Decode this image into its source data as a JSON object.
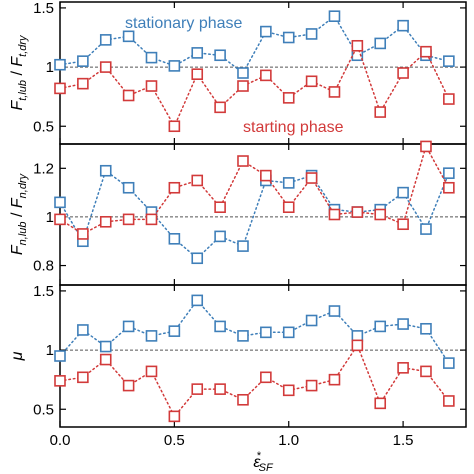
{
  "colors": {
    "stationary": "#3f7fb9",
    "starting": "#d23a3a",
    "reference": "#555555"
  },
  "chart_data": [
    {
      "type": "scatter",
      "ylabel_main": "F",
      "ylabel_sub1": "t,lub",
      "ylabel_mid": " / ",
      "ylabel_main2": "F",
      "ylabel_sub2": "t,dry",
      "ylim": [
        0.35,
        1.55
      ],
      "yticks": [
        0.5,
        1,
        1.5
      ],
      "ytick_labels": [
        "0.5",
        "1",
        "1.5"
      ],
      "reference_y": 1,
      "annotations": [
        {
          "text": "stationary phase",
          "series": "stationary"
        },
        {
          "text": "starting phase",
          "series": "starting"
        }
      ],
      "series": [
        {
          "key": "stationary",
          "x": [
            0,
            0.1,
            0.2,
            0.3,
            0.4,
            0.5,
            0.6,
            0.7,
            0.8,
            0.9,
            1.0,
            1.1,
            1.2,
            1.3,
            1.4,
            1.5,
            1.6,
            1.7
          ],
          "y": [
            1.02,
            1.05,
            1.23,
            1.26,
            1.08,
            1.01,
            1.12,
            1.1,
            0.95,
            1.3,
            1.25,
            1.28,
            1.43,
            1.1,
            1.2,
            1.35,
            1.1,
            1.05
          ]
        },
        {
          "key": "starting",
          "x": [
            0,
            0.1,
            0.2,
            0.3,
            0.4,
            0.5,
            0.6,
            0.7,
            0.8,
            0.9,
            1.0,
            1.1,
            1.2,
            1.3,
            1.4,
            1.5,
            1.6,
            1.7
          ],
          "y": [
            0.82,
            0.86,
            1.0,
            0.76,
            0.84,
            0.5,
            0.94,
            0.66,
            0.84,
            0.93,
            0.74,
            0.88,
            0.79,
            1.18,
            0.62,
            0.95,
            1.13,
            0.73
          ]
        }
      ]
    },
    {
      "type": "scatter",
      "ylabel_main": "F",
      "ylabel_sub1": "n,lub",
      "ylabel_mid": " / ",
      "ylabel_main2": "F",
      "ylabel_sub2": "n,dry",
      "ylim": [
        0.72,
        1.3
      ],
      "yticks": [
        0.8,
        1,
        1.2
      ],
      "ytick_labels": [
        "0.8",
        "1",
        "1.2"
      ],
      "reference_y": 1,
      "series": [
        {
          "key": "stationary",
          "x": [
            0,
            0.1,
            0.2,
            0.3,
            0.4,
            0.5,
            0.6,
            0.7,
            0.8,
            0.9,
            1.0,
            1.1,
            1.2,
            1.3,
            1.4,
            1.5,
            1.6,
            1.7
          ],
          "y": [
            1.06,
            0.9,
            1.19,
            1.12,
            1.02,
            0.91,
            0.83,
            0.92,
            0.88,
            1.15,
            1.14,
            1.17,
            1.03,
            1.02,
            1.03,
            1.1,
            0.95,
            1.18
          ]
        },
        {
          "key": "starting",
          "x": [
            0,
            0.1,
            0.2,
            0.3,
            0.4,
            0.5,
            0.6,
            0.7,
            0.8,
            0.9,
            1.0,
            1.1,
            1.2,
            1.3,
            1.4,
            1.5,
            1.6,
            1.7
          ],
          "y": [
            0.99,
            0.93,
            0.98,
            0.99,
            0.99,
            1.12,
            1.15,
            1.04,
            1.23,
            1.17,
            1.04,
            1.16,
            1.01,
            1.02,
            1.01,
            0.97,
            1.29,
            1.12
          ]
        }
      ]
    },
    {
      "type": "scatter",
      "ylabel_main": "μ",
      "ylim": [
        0.35,
        1.55
      ],
      "yticks": [
        0.5,
        1,
        1.5
      ],
      "ytick_labels": [
        "0.5",
        "1",
        "1.5"
      ],
      "reference_y": 1,
      "xticks": [
        0,
        0.5,
        1,
        1.5
      ],
      "xtick_labels": [
        "0.0",
        "0.5",
        "1.0",
        "1.5"
      ],
      "xlabel_main": "ε",
      "xlabel_sup": "*",
      "xlabel_sub": "SF",
      "series": [
        {
          "key": "stationary",
          "x": [
            0,
            0.1,
            0.2,
            0.3,
            0.4,
            0.5,
            0.6,
            0.7,
            0.8,
            0.9,
            1.0,
            1.1,
            1.2,
            1.3,
            1.4,
            1.5,
            1.6,
            1.7
          ],
          "y": [
            0.95,
            1.17,
            1.03,
            1.2,
            1.12,
            1.16,
            1.42,
            1.2,
            1.12,
            1.15,
            1.15,
            1.25,
            1.33,
            1.12,
            1.2,
            1.22,
            1.18,
            0.89
          ]
        },
        {
          "key": "starting",
          "x": [
            0,
            0.1,
            0.2,
            0.3,
            0.4,
            0.5,
            0.6,
            0.7,
            0.8,
            0.9,
            1.0,
            1.1,
            1.2,
            1.3,
            1.4,
            1.5,
            1.6,
            1.7
          ],
          "y": [
            0.74,
            0.77,
            0.92,
            0.7,
            0.82,
            0.44,
            0.67,
            0.67,
            0.58,
            0.77,
            0.66,
            0.7,
            0.75,
            1.04,
            0.55,
            0.85,
            0.82,
            0.57
          ]
        }
      ]
    }
  ],
  "shared_x": {
    "xlim": [
      0,
      1.775
    ]
  }
}
